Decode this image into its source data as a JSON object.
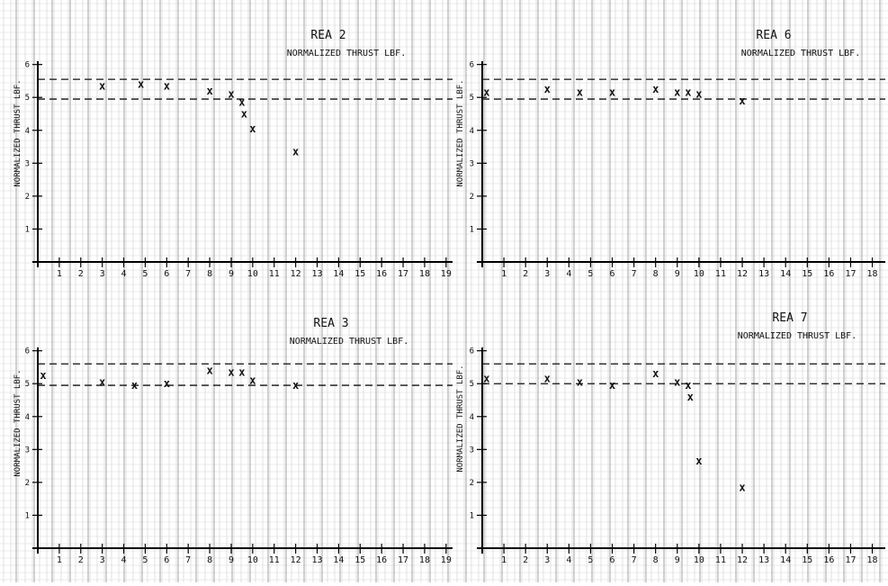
{
  "chart_data": [
    {
      "type": "scatter",
      "title": "REA 2",
      "subtitle": "NORMALIZED THRUST LBF.",
      "ylabel": "NORMALIZED THRUST LBF.",
      "xlabel": "",
      "x_ticks": [
        "1",
        "2",
        "3",
        "4",
        "5",
        "6",
        "7",
        "8",
        "9",
        "10",
        "11",
        "12",
        "13",
        "14",
        "15",
        "16",
        "17",
        "18",
        "19"
      ],
      "y_ticks": [
        "1",
        "2",
        "3",
        "4",
        "5",
        "6"
      ],
      "xlim": [
        0,
        19.3
      ],
      "ylim": [
        0,
        6.1
      ],
      "ref_lines": [
        5.55,
        4.95
      ],
      "x": [
        3,
        4.8,
        6,
        8,
        9,
        9.5,
        9.6,
        10,
        12
      ],
      "y": [
        5.35,
        5.4,
        5.35,
        5.2,
        5.1,
        4.85,
        4.5,
        4.05,
        3.35
      ]
    },
    {
      "type": "scatter",
      "title": "REA 6",
      "subtitle": "NORMALIZED THRUST LBF.",
      "ylabel": "NORMALIZED THRUST LBF.",
      "xlabel": "",
      "x_ticks": [
        "1",
        "2",
        "3",
        "4",
        "5",
        "6",
        "7",
        "8",
        "9",
        "10",
        "11",
        "12",
        "13",
        "14",
        "15",
        "16",
        "17",
        "18"
      ],
      "y_ticks": [
        "1",
        "2",
        "3",
        "4",
        "5",
        "6"
      ],
      "xlim": [
        0,
        18.6
      ],
      "ylim": [
        0,
        6.1
      ],
      "ref_lines": [
        5.55,
        4.95
      ],
      "x": [
        3,
        4.5,
        6,
        8,
        9,
        9.5,
        10,
        12
      ],
      "y": [
        5.25,
        5.15,
        5.15,
        5.25,
        5.15,
        5.15,
        5.1,
        4.9
      ],
      "extra_marks": [
        {
          "x": 0.2,
          "y": 5.15
        }
      ]
    },
    {
      "type": "scatter",
      "title": "REA 3",
      "subtitle": "NORMALIZED THRUST LBF.",
      "ylabel": "NORMALIZED THRUST LBF.",
      "xlabel": "",
      "x_ticks": [
        "1",
        "2",
        "3",
        "4",
        "5",
        "6",
        "7",
        "8",
        "9",
        "10",
        "11",
        "12",
        "13",
        "14",
        "15",
        "16",
        "17",
        "18",
        "19"
      ],
      "y_ticks": [
        "1",
        "2",
        "3",
        "4",
        "5",
        "6"
      ],
      "xlim": [
        0,
        19.3
      ],
      "ylim": [
        0,
        6.1
      ],
      "ref_lines": [
        5.6,
        4.95
      ],
      "x": [
        3,
        4.5,
        6,
        8,
        9,
        9.5,
        10,
        12
      ],
      "y": [
        5.05,
        4.95,
        5.0,
        5.4,
        5.35,
        5.35,
        5.1,
        4.95
      ],
      "extra_marks": [
        {
          "x": 0.25,
          "y": 5.25
        }
      ]
    },
    {
      "type": "scatter",
      "title": "REA 7",
      "subtitle": "NORMALIZED THRUST LBF.",
      "ylabel": "NORMALIZED THRUST LBF.",
      "xlabel": "",
      "x_ticks": [
        "1",
        "2",
        "3",
        "4",
        "5",
        "6",
        "7",
        "8",
        "9",
        "10",
        "11",
        "12",
        "13",
        "14",
        "15",
        "16",
        "17",
        "18"
      ],
      "y_ticks": [
        "1",
        "2",
        "3",
        "4",
        "5",
        "6"
      ],
      "xlim": [
        0,
        18.6
      ],
      "ylim": [
        0,
        6.1
      ],
      "ref_lines": [
        5.6,
        5.0
      ],
      "x": [
        3,
        4.5,
        6,
        8,
        9,
        9.5,
        9.6,
        10,
        12
      ],
      "y": [
        5.15,
        5.05,
        4.95,
        5.3,
        5.05,
        4.95,
        4.6,
        2.65,
        1.85
      ],
      "extra_marks": [
        {
          "x": 0.2,
          "y": 5.15
        }
      ]
    }
  ]
}
